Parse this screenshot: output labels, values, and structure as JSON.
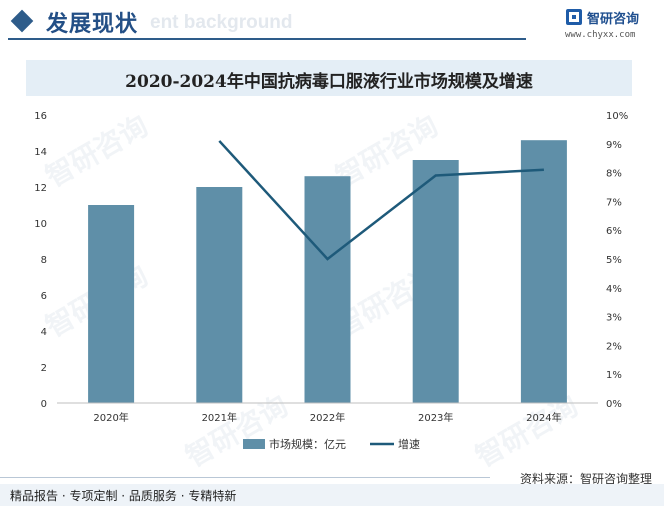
{
  "header": {
    "title": "发展现状",
    "ghost_text": "ent background"
  },
  "logo": {
    "name": "智研咨询",
    "url": "www.chyxx.com"
  },
  "watermark": "智研咨询",
  "chart_data": {
    "type": "bar",
    "title": "2020-2024年中国抗病毒口服液行业市场规模及增速",
    "categories": [
      "2020年",
      "2021年",
      "2022年",
      "2023年",
      "2024年"
    ],
    "series": [
      {
        "name": "市场规模：亿元",
        "type": "bar",
        "axis": "left",
        "color": "#5f8fa8",
        "values": [
          11.0,
          12.0,
          12.6,
          13.5,
          14.6
        ]
      },
      {
        "name": "增速",
        "type": "line",
        "axis": "right",
        "color": "#1e5a7a",
        "values": [
          null,
          9.1,
          5.0,
          7.9,
          8.1
        ]
      }
    ],
    "y_left": {
      "min": 0,
      "max": 16,
      "ticks": [
        "0",
        "2",
        "4",
        "6",
        "8",
        "10",
        "12",
        "14",
        "16"
      ]
    },
    "y_right": {
      "min": 0,
      "max": 10,
      "ticks": [
        "0%",
        "1%",
        "2%",
        "3%",
        "4%",
        "5%",
        "6%",
        "7%",
        "8%",
        "9%",
        "10%"
      ]
    },
    "grid": false,
    "legend_position": "bottom-center"
  },
  "source": "资料来源：智研咨询整理",
  "footer": "精品报告 · 专项定制 · 品质服务 · 专精特新"
}
